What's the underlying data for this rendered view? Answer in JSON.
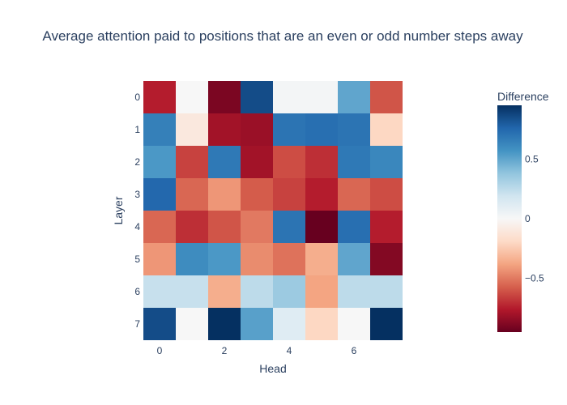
{
  "chart_data": {
    "type": "heatmap",
    "title": "Average attention paid to positions that are an even or odd number steps away",
    "xlabel": "Head",
    "ylabel": "Layer",
    "x": [
      0,
      1,
      2,
      3,
      4,
      5,
      6,
      7
    ],
    "y": [
      0,
      1,
      2,
      3,
      4,
      5,
      6,
      7
    ],
    "x_tick_labels": [
      "0",
      "2",
      "4",
      "6"
    ],
    "x_tick_values": [
      0,
      2,
      4,
      6
    ],
    "y_tick_labels": [
      "0",
      "1",
      "2",
      "3",
      "4",
      "5",
      "6",
      "7"
    ],
    "y_tick_values": [
      0,
      1,
      2,
      3,
      4,
      5,
      6,
      7
    ],
    "z": [
      [
        -0.75,
        0.0,
        -0.9,
        0.85,
        0.02,
        0.02,
        0.5,
        -0.6
      ],
      [
        0.65,
        -0.1,
        -0.8,
        -0.82,
        0.7,
        0.72,
        0.7,
        -0.2
      ],
      [
        0.55,
        -0.65,
        0.68,
        -0.8,
        -0.62,
        -0.7,
        0.68,
        0.62
      ],
      [
        0.75,
        -0.55,
        -0.42,
        -0.58,
        -0.65,
        -0.75,
        -0.55,
        -0.62
      ],
      [
        -0.55,
        -0.7,
        -0.6,
        -0.5,
        0.7,
        -1.0,
        0.72,
        -0.75
      ],
      [
        -0.42,
        0.6,
        0.55,
        -0.45,
        -0.52,
        -0.35,
        0.5,
        -0.88
      ],
      [
        0.22,
        0.22,
        -0.35,
        0.25,
        0.35,
        -0.38,
        0.25,
        0.25
      ],
      [
        0.85,
        0.0,
        0.95,
        0.52,
        0.12,
        -0.2,
        0.0,
        0.95
      ]
    ],
    "zmin": -0.95,
    "zmax": 0.95,
    "colorscale_name": "RdBu",
    "colorbar_title": "Difference",
    "colorbar_tick_labels": [
      "0.5",
      "0",
      "−0.5"
    ],
    "colorbar_tick_values": [
      0.5,
      0,
      -0.5
    ],
    "colorscale": [
      [
        0.0,
        "#67001f"
      ],
      [
        0.1,
        "#b2182b"
      ],
      [
        0.2,
        "#d6604d"
      ],
      [
        0.3,
        "#f4a582"
      ],
      [
        0.4,
        "#fddbc7"
      ],
      [
        0.5,
        "#f7f7f7"
      ],
      [
        0.6,
        "#d1e5f0"
      ],
      [
        0.7,
        "#92c5de"
      ],
      [
        0.8,
        "#4393c3"
      ],
      [
        0.9,
        "#2166ac"
      ],
      [
        1.0,
        "#053061"
      ]
    ],
    "grid": false,
    "legend": "colorbar-right"
  },
  "colors": {
    "text": "#2a3f5f",
    "background": "#ffffff"
  }
}
